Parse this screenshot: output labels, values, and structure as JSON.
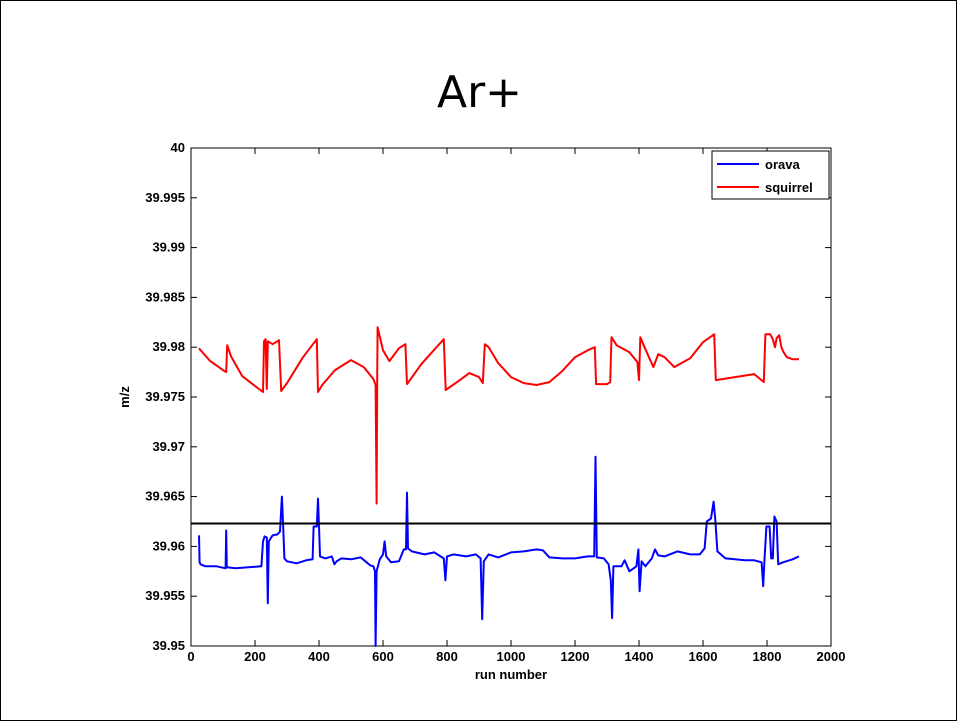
{
  "slide": {
    "title": "Ar+"
  },
  "chart_data": {
    "type": "line",
    "xlabel": "run number",
    "ylabel": "m/z",
    "xlim": [
      0,
      2000
    ],
    "ylim": [
      39.95,
      40
    ],
    "xticks": [
      0,
      200,
      400,
      600,
      800,
      1000,
      1200,
      1400,
      1600,
      1800,
      2000
    ],
    "yticks": [
      39.95,
      39.955,
      39.96,
      39.965,
      39.97,
      39.975,
      39.98,
      39.985,
      39.99,
      39.995,
      40
    ],
    "ytick_labels": [
      "39.95",
      "39.955",
      "39.96",
      "39.965",
      "39.97",
      "39.975",
      "39.98",
      "39.985",
      "39.99",
      "39.995",
      "40"
    ],
    "grid": false,
    "legend_position": "top-right",
    "reference_line": {
      "y": 39.9623,
      "color": "#000000"
    },
    "series": [
      {
        "name": "orava",
        "color": "#0000ff",
        "points": [
          [
            25,
            39.9611
          ],
          [
            27,
            39.9584
          ],
          [
            30,
            39.9582
          ],
          [
            45,
            39.958
          ],
          [
            80,
            39.958
          ],
          [
            108,
            39.9578
          ],
          [
            110,
            39.9616
          ],
          [
            112,
            39.9579
          ],
          [
            140,
            39.9578
          ],
          [
            180,
            39.9579
          ],
          [
            220,
            39.958
          ],
          [
            225,
            39.9605
          ],
          [
            230,
            39.961
          ],
          [
            237,
            39.9609
          ],
          [
            240,
            39.9543
          ],
          [
            243,
            39.9605
          ],
          [
            255,
            39.9611
          ],
          [
            270,
            39.9612
          ],
          [
            278,
            39.9615
          ],
          [
            284,
            39.965
          ],
          [
            288,
            39.962
          ],
          [
            292,
            39.9588
          ],
          [
            300,
            39.9585
          ],
          [
            330,
            39.9583
          ],
          [
            360,
            39.9586
          ],
          [
            380,
            39.9587
          ],
          [
            383,
            39.962
          ],
          [
            393,
            39.962
          ],
          [
            397,
            39.9648
          ],
          [
            400,
            39.962
          ],
          [
            403,
            39.959
          ],
          [
            420,
            39.9588
          ],
          [
            440,
            39.959
          ],
          [
            448,
            39.9582
          ],
          [
            455,
            39.9585
          ],
          [
            470,
            39.9588
          ],
          [
            500,
            39.9587
          ],
          [
            530,
            39.9589
          ],
          [
            560,
            39.9581
          ],
          [
            570,
            39.958
          ],
          [
            575,
            39.9575
          ],
          [
            577,
            39.95
          ],
          [
            580,
            39.9575
          ],
          [
            590,
            39.9587
          ],
          [
            600,
            39.9592
          ],
          [
            605,
            39.9605
          ],
          [
            610,
            39.959
          ],
          [
            625,
            39.9584
          ],
          [
            650,
            39.9585
          ],
          [
            665,
            39.9597
          ],
          [
            672,
            39.9597
          ],
          [
            675,
            39.9654
          ],
          [
            678,
            39.9598
          ],
          [
            690,
            39.9595
          ],
          [
            730,
            39.9592
          ],
          [
            760,
            39.9594
          ],
          [
            780,
            39.959
          ],
          [
            790,
            39.9588
          ],
          [
            795,
            39.9566
          ],
          [
            800,
            39.959
          ],
          [
            820,
            39.9592
          ],
          [
            860,
            39.959
          ],
          [
            890,
            39.9592
          ],
          [
            905,
            39.9588
          ],
          [
            910,
            39.9527
          ],
          [
            915,
            39.9585
          ],
          [
            930,
            39.9592
          ],
          [
            960,
            39.9589
          ],
          [
            1000,
            39.9594
          ],
          [
            1040,
            39.9595
          ],
          [
            1080,
            39.9597
          ],
          [
            1100,
            39.9596
          ],
          [
            1120,
            39.9589
          ],
          [
            1160,
            39.9588
          ],
          [
            1200,
            39.9588
          ],
          [
            1240,
            39.959
          ],
          [
            1260,
            39.959
          ],
          [
            1264,
            39.969
          ],
          [
            1268,
            39.9589
          ],
          [
            1290,
            39.9588
          ],
          [
            1305,
            39.9582
          ],
          [
            1312,
            39.9566
          ],
          [
            1316,
            39.9528
          ],
          [
            1320,
            39.958
          ],
          [
            1345,
            39.958
          ],
          [
            1355,
            39.9586
          ],
          [
            1370,
            39.9575
          ],
          [
            1392,
            39.958
          ],
          [
            1398,
            39.9597
          ],
          [
            1402,
            39.9555
          ],
          [
            1408,
            39.9585
          ],
          [
            1420,
            39.958
          ],
          [
            1440,
            39.9588
          ],
          [
            1450,
            39.9597
          ],
          [
            1460,
            39.9591
          ],
          [
            1480,
            39.959
          ],
          [
            1520,
            39.9595
          ],
          [
            1560,
            39.9592
          ],
          [
            1590,
            39.9592
          ],
          [
            1605,
            39.9598
          ],
          [
            1612,
            39.9625
          ],
          [
            1625,
            39.9628
          ],
          [
            1633,
            39.9645
          ],
          [
            1638,
            39.9628
          ],
          [
            1645,
            39.9595
          ],
          [
            1670,
            39.9588
          ],
          [
            1700,
            39.9587
          ],
          [
            1730,
            39.9586
          ],
          [
            1760,
            39.9586
          ],
          [
            1783,
            39.9584
          ],
          [
            1788,
            39.956
          ],
          [
            1792,
            39.9585
          ],
          [
            1798,
            39.962
          ],
          [
            1808,
            39.962
          ],
          [
            1813,
            39.9588
          ],
          [
            1818,
            39.9588
          ],
          [
            1823,
            39.963
          ],
          [
            1830,
            39.9625
          ],
          [
            1835,
            39.9582
          ],
          [
            1850,
            39.9584
          ],
          [
            1880,
            39.9587
          ],
          [
            1900,
            39.959
          ]
        ]
      },
      {
        "name": "squirrel",
        "color": "#ff0000",
        "points": [
          [
            25,
            39.9799
          ],
          [
            30,
            39.9797
          ],
          [
            60,
            39.9786
          ],
          [
            100,
            39.9777
          ],
          [
            110,
            39.9775
          ],
          [
            113,
            39.9802
          ],
          [
            125,
            39.9791
          ],
          [
            160,
            39.9771
          ],
          [
            200,
            39.9761
          ],
          [
            225,
            39.9755
          ],
          [
            228,
            39.9806
          ],
          [
            233,
            39.9808
          ],
          [
            237,
            39.9758
          ],
          [
            240,
            39.9806
          ],
          [
            255,
            39.9803
          ],
          [
            275,
            39.9807
          ],
          [
            282,
            39.9756
          ],
          [
            300,
            39.9764
          ],
          [
            350,
            39.979
          ],
          [
            393,
            39.9808
          ],
          [
            397,
            39.9755
          ],
          [
            410,
            39.9762
          ],
          [
            450,
            39.9777
          ],
          [
            500,
            39.9787
          ],
          [
            540,
            39.978
          ],
          [
            570,
            39.9768
          ],
          [
            577,
            39.9762
          ],
          [
            580,
            39.9643
          ],
          [
            582,
            39.9768
          ],
          [
            583,
            39.982
          ],
          [
            600,
            39.9797
          ],
          [
            620,
            39.9786
          ],
          [
            650,
            39.9799
          ],
          [
            670,
            39.9803
          ],
          [
            675,
            39.9763
          ],
          [
            720,
            39.9783
          ],
          [
            770,
            39.9801
          ],
          [
            790,
            39.9808
          ],
          [
            796,
            39.9757
          ],
          [
            840,
            39.9767
          ],
          [
            870,
            39.9774
          ],
          [
            900,
            39.977
          ],
          [
            912,
            39.9764
          ],
          [
            918,
            39.9803
          ],
          [
            930,
            39.98
          ],
          [
            960,
            39.9784
          ],
          [
            1000,
            39.977
          ],
          [
            1040,
            39.9764
          ],
          [
            1080,
            39.9762
          ],
          [
            1120,
            39.9765
          ],
          [
            1160,
            39.9776
          ],
          [
            1200,
            39.979
          ],
          [
            1240,
            39.9797
          ],
          [
            1262,
            39.98
          ],
          [
            1266,
            39.9763
          ],
          [
            1300,
            39.9763
          ],
          [
            1310,
            39.9765
          ],
          [
            1314,
            39.981
          ],
          [
            1330,
            39.9802
          ],
          [
            1370,
            39.9795
          ],
          [
            1395,
            39.9785
          ],
          [
            1400,
            39.9767
          ],
          [
            1404,
            39.981
          ],
          [
            1420,
            39.9798
          ],
          [
            1435,
            39.9787
          ],
          [
            1445,
            39.978
          ],
          [
            1460,
            39.9793
          ],
          [
            1480,
            39.979
          ],
          [
            1510,
            39.978
          ],
          [
            1560,
            39.9789
          ],
          [
            1600,
            39.9805
          ],
          [
            1635,
            39.9813
          ],
          [
            1640,
            39.9767
          ],
          [
            1700,
            39.977
          ],
          [
            1760,
            39.9773
          ],
          [
            1790,
            39.9765
          ],
          [
            1795,
            39.9813
          ],
          [
            1810,
            39.9813
          ],
          [
            1818,
            39.9808
          ],
          [
            1825,
            39.98
          ],
          [
            1830,
            39.9809
          ],
          [
            1838,
            39.9812
          ],
          [
            1845,
            39.98
          ],
          [
            1852,
            39.9795
          ],
          [
            1862,
            39.979
          ],
          [
            1880,
            39.9788
          ],
          [
            1900,
            39.9788
          ]
        ]
      }
    ]
  }
}
